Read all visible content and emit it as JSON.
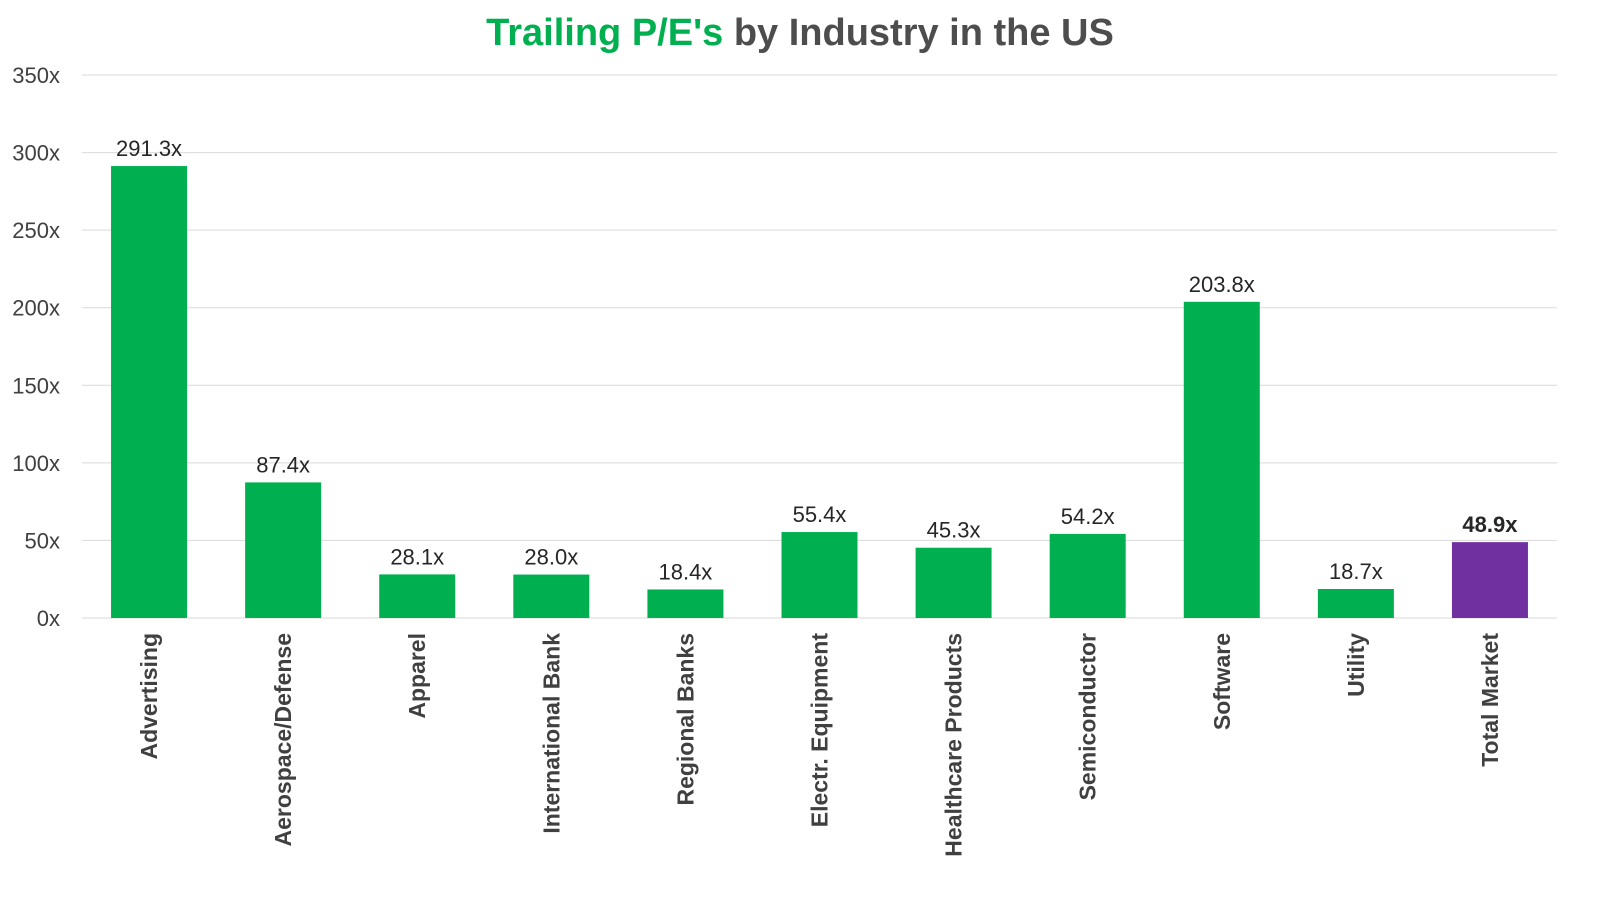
{
  "title": {
    "highlight": "Trailing P/E's",
    "rest": "by Industry in the US"
  },
  "colors": {
    "bar": "#00b050",
    "highlight_bar": "#7030a0",
    "title_highlight": "#00b050",
    "grid": "#d9d9d9"
  },
  "chart_data": {
    "type": "bar",
    "title": "Trailing P/E's by Industry in the US",
    "xlabel": "",
    "ylabel": "",
    "ylim": [
      0,
      350
    ],
    "yticks": [
      0,
      50,
      100,
      150,
      200,
      250,
      300,
      350
    ],
    "ytick_labels": [
      "0x",
      "50x",
      "100x",
      "150x",
      "200x",
      "250x",
      "300x",
      "350x"
    ],
    "grid": true,
    "categories": [
      "Advertising",
      "Aerospace/Defense",
      "Apparel",
      "International Bank",
      "Regional Banks",
      "Electr. Equipment",
      "Healthcare Products",
      "Semiconductor",
      "Software",
      "Utility",
      "Total Market"
    ],
    "values": [
      291.3,
      87.4,
      28.1,
      28.0,
      18.4,
      55.4,
      45.3,
      54.2,
      203.8,
      18.7,
      48.9
    ],
    "data_labels": [
      "291.3x",
      "87.4x",
      "28.1x",
      "28.0x",
      "18.4x",
      "55.4x",
      "45.3x",
      "54.2x",
      "203.8x",
      "18.7x",
      "48.9x"
    ],
    "highlighted_category": "Total Market"
  }
}
